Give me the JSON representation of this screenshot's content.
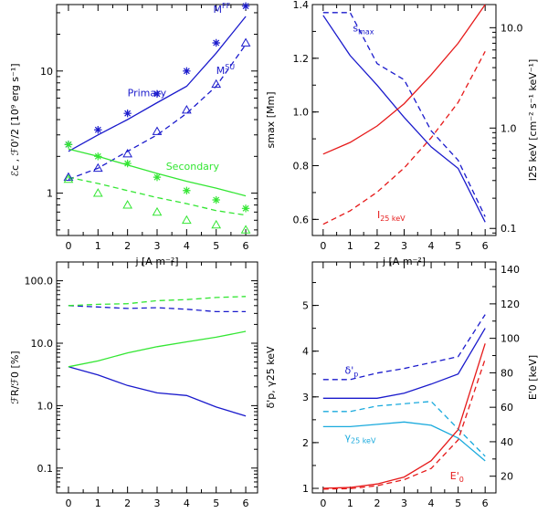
{
  "colors": {
    "blue": "#1a1acc",
    "green": "#33e633",
    "red": "#e61a1a",
    "cyan": "#1aaadd"
  },
  "chart_data": [
    {
      "type": "line",
      "x": [
        0,
        1,
        2,
        3,
        4,
        5,
        6
      ],
      "xlim": [
        -0.4,
        6.4
      ],
      "xticks": [
        "0",
        "1",
        "2",
        "3",
        "4",
        "5",
        "6"
      ],
      "xlabel": "j [A m⁻²]",
      "ylabel": "ℰc , ℱ0'/2 [10⁹ erg s⁻¹]",
      "ylog": true,
      "ylim": [
        0.45,
        35
      ],
      "yticks": [
        "1",
        "10"
      ],
      "annotations": [
        {
          "text": "Primary",
          "color": "#1a1acc",
          "at": [
            2.0,
            6.2
          ]
        },
        {
          "text": "Secondary",
          "color": "#33e633",
          "at": [
            3.3,
            1.55
          ]
        },
        {
          "text": "M",
          "sup": "FF",
          "color": "#1a1acc",
          "at": [
            4.9,
            30
          ]
        },
        {
          "text": "M",
          "sup": "SU",
          "color": "#1a1acc",
          "at": [
            5.0,
            9.5
          ]
        }
      ],
      "series": [
        {
          "color": "#1a1acc",
          "dash": false,
          "values": [
            2.2,
            3.0,
            4.0,
            5.5,
            7.5,
            14.0,
            28.0
          ]
        },
        {
          "color": "#1a1acc",
          "dash": true,
          "values": [
            1.3,
            1.6,
            2.2,
            3.0,
            4.5,
            7.5,
            16.5
          ]
        },
        {
          "color": "#33e633",
          "dash": false,
          "values": [
            2.3,
            2.0,
            1.7,
            1.45,
            1.25,
            1.1,
            0.95
          ]
        },
        {
          "color": "#33e633",
          "dash": true,
          "values": [
            1.35,
            1.2,
            1.05,
            0.92,
            0.82,
            0.72,
            0.66
          ]
        },
        {
          "color": "#1a1acc",
          "marker": "star",
          "values": [
            2.5,
            3.3,
            4.5,
            6.5,
            10.0,
            17.0,
            34.0
          ]
        },
        {
          "color": "#1a1acc",
          "marker": "triangle",
          "values": [
            1.35,
            1.6,
            2.1,
            3.2,
            4.8,
            7.8,
            17.0
          ]
        },
        {
          "color": "#33e633",
          "marker": "star",
          "values": [
            2.5,
            2.0,
            1.75,
            1.35,
            1.05,
            0.88,
            0.75
          ]
        },
        {
          "color": "#33e633",
          "marker": "triangle",
          "values": [
            1.3,
            1.0,
            0.8,
            0.7,
            0.6,
            0.55,
            0.5
          ]
        }
      ]
    },
    {
      "type": "line",
      "x": [
        0,
        1,
        2,
        3,
        4,
        5,
        6
      ],
      "xlim": [
        -0.4,
        6.4
      ],
      "xticks": [
        "0",
        "1",
        "2",
        "3",
        "4",
        "5",
        "6"
      ],
      "xlabel": "j [A m⁻²]",
      "ylabel": "smax [Mm]",
      "ylim": [
        0.54,
        1.4
      ],
      "yticks": [
        {
          "v": 0.6,
          "label": "0.6"
        },
        {
          "v": 0.8,
          "label": "0.8"
        },
        {
          "v": 1.0,
          "label": "1.0"
        },
        {
          "v": 1.2,
          "label": "1.2"
        },
        {
          "v": 1.4,
          "label": "1.4"
        }
      ],
      "y2label": "I25 keV [cm⁻² s⁻¹ keV⁻¹]",
      "y2log": true,
      "y2lim": [
        0.085,
        17
      ],
      "y2ticks": [
        {
          "v": 0.1,
          "label": "0.1"
        },
        {
          "v": 1.0,
          "label": "1.0"
        },
        {
          "v": 10.0,
          "label": "10.0"
        }
      ],
      "annotations": [
        {
          "text": "s",
          "sub": "max",
          "color": "#1a1acc",
          "at": [
            1.1,
            1.3
          ]
        },
        {
          "text": "I",
          "sub": "25 keV",
          "color": "#e61a1a",
          "at": [
            2.0,
            0.605
          ]
        }
      ],
      "series": [
        {
          "color": "#1a1acc",
          "dash": false,
          "values": [
            1.36,
            1.21,
            1.1,
            0.98,
            0.87,
            0.79,
            0.59
          ]
        },
        {
          "color": "#1a1acc",
          "dash": true,
          "values": [
            1.37,
            1.37,
            1.18,
            1.12,
            0.93,
            0.82,
            0.61
          ]
        },
        {
          "color": "#e61a1a",
          "dash": false,
          "axis": "y2",
          "values": [
            0.55,
            0.72,
            1.05,
            1.75,
            3.4,
            7.0,
            17.0
          ]
        },
        {
          "color": "#e61a1a",
          "dash": true,
          "axis": "y2",
          "values": [
            0.11,
            0.15,
            0.23,
            0.4,
            0.8,
            1.8,
            5.8
          ]
        }
      ]
    },
    {
      "type": "line",
      "x": [
        0,
        1,
        2,
        3,
        4,
        5,
        6
      ],
      "xlim": [
        -0.4,
        6.4
      ],
      "xticks": [
        "0",
        "1",
        "2",
        "3",
        "4",
        "5",
        "6"
      ],
      "xlabel": "j [A m⁻²]",
      "ylabel": "ℱR/ℱ0 [%]",
      "ylog": true,
      "ylim": [
        0.04,
        200
      ],
      "yticks": [
        {
          "v": 0.1,
          "label": "0.1"
        },
        {
          "v": 1.0,
          "label": "1.0"
        },
        {
          "v": 10.0,
          "label": "10.0"
        },
        {
          "v": 100.0,
          "label": "100.0"
        }
      ],
      "series": [
        {
          "color": "#1a1acc",
          "dash": false,
          "values": [
            4.2,
            3.1,
            2.1,
            1.6,
            1.45,
            0.95,
            0.68
          ]
        },
        {
          "color": "#1a1acc",
          "dash": true,
          "values": [
            40,
            38,
            36,
            37,
            35,
            32,
            32
          ]
        },
        {
          "color": "#33e633",
          "dash": false,
          "values": [
            4.2,
            5.2,
            7.0,
            8.8,
            10.5,
            12.5,
            15.5
          ]
        },
        {
          "color": "#33e633",
          "dash": true,
          "values": [
            40,
            42,
            43,
            48,
            50,
            54,
            56
          ]
        }
      ]
    },
    {
      "type": "line",
      "x": [
        0,
        1,
        2,
        3,
        4,
        5,
        6
      ],
      "xlim": [
        -0.4,
        6.4
      ],
      "xticks": [
        "0",
        "1",
        "2",
        "3",
        "4",
        "5",
        "6"
      ],
      "xlabel": "j [A m⁻²]",
      "ylabel": "δ'p, γ25 keV",
      "ylim": [
        0.9,
        5.95
      ],
      "yticks": [
        {
          "v": 1,
          "label": "1"
        },
        {
          "v": 2,
          "label": "2"
        },
        {
          "v": 3,
          "label": "3"
        },
        {
          "v": 4,
          "label": "4"
        },
        {
          "v": 5,
          "label": "5"
        }
      ],
      "y2label": "E'0 [keV]",
      "y2lim": [
        10.3,
        144.3
      ],
      "y2ticks": [
        {
          "v": 20,
          "label": "20"
        },
        {
          "v": 40,
          "label": "40"
        },
        {
          "v": 60,
          "label": "60"
        },
        {
          "v": 80,
          "label": "80"
        },
        {
          "v": 100,
          "label": "100"
        },
        {
          "v": 120,
          "label": "120"
        },
        {
          "v": 140,
          "label": "140"
        }
      ],
      "annotations": [
        {
          "text": "δ'",
          "sub": "p",
          "color": "#1a1acc",
          "at": [
            0.8,
            3.5
          ]
        },
        {
          "text": "γ",
          "sub": "25 keV",
          "color": "#1aaadd",
          "at": [
            0.8,
            2.05
          ]
        },
        {
          "text": "E'",
          "sub": "0",
          "color": "#e61a1a",
          "at": [
            4.7,
            1.2
          ]
        }
      ],
      "series": [
        {
          "color": "#1a1acc",
          "dash": false,
          "values": [
            2.97,
            2.97,
            2.97,
            3.08,
            3.28,
            3.5,
            4.5
          ]
        },
        {
          "color": "#1a1acc",
          "dash": true,
          "values": [
            3.38,
            3.38,
            3.52,
            3.62,
            3.75,
            3.88,
            4.8
          ]
        },
        {
          "color": "#1aaadd",
          "dash": false,
          "values": [
            2.35,
            2.35,
            2.4,
            2.45,
            2.38,
            2.1,
            1.6
          ]
        },
        {
          "color": "#1aaadd",
          "dash": true,
          "values": [
            2.68,
            2.68,
            2.8,
            2.85,
            2.9,
            2.3,
            1.7
          ]
        },
        {
          "color": "#e61a1a",
          "dash": false,
          "axis": "y2",
          "values": [
            13,
            13.5,
            15.5,
            19.5,
            29,
            47,
            97
          ]
        },
        {
          "color": "#e61a1a",
          "dash": true,
          "axis": "y2",
          "values": [
            12.5,
            12.8,
            14.5,
            18,
            24.5,
            41,
            88
          ]
        }
      ]
    }
  ]
}
